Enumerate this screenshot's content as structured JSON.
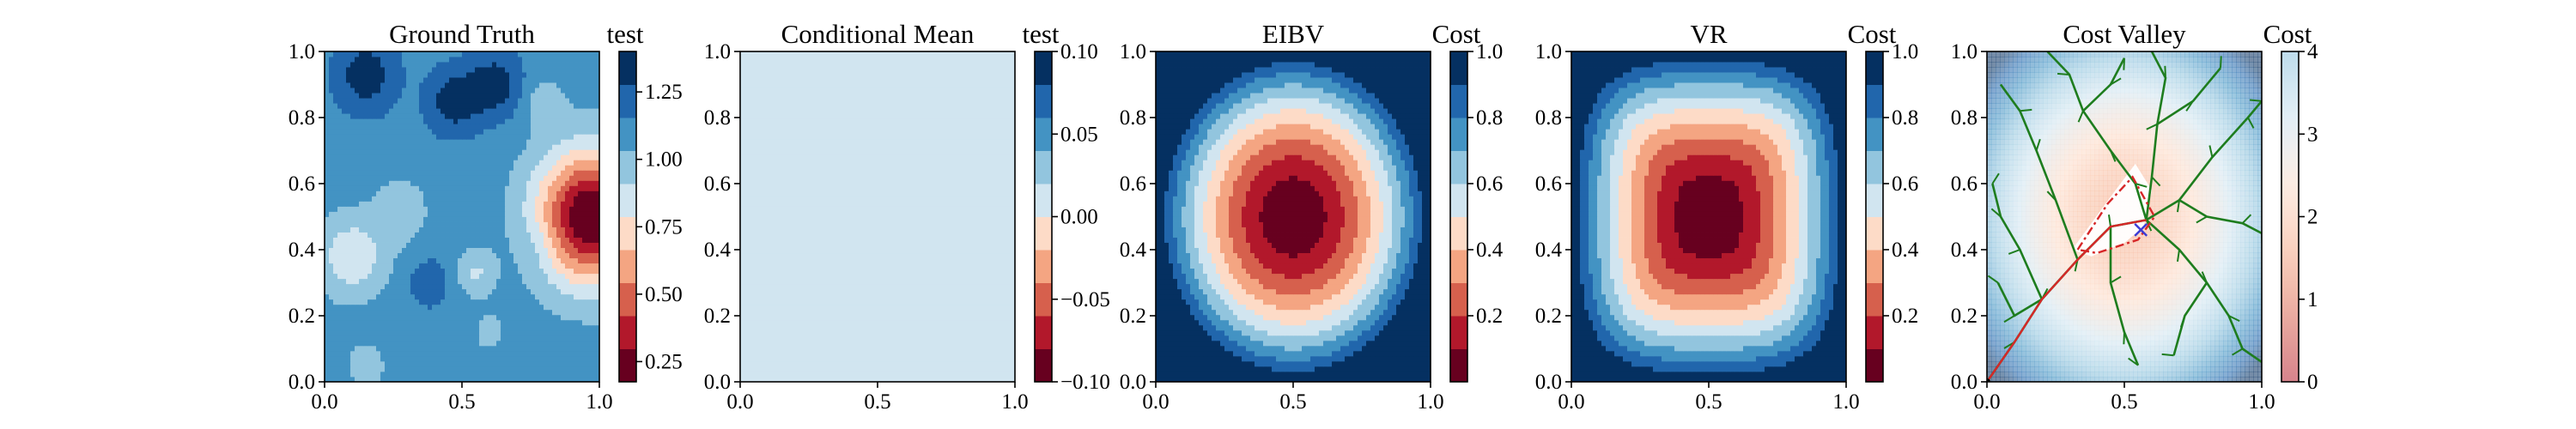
{
  "chart_data": [
    {
      "type": "heatmap",
      "title": "Ground Truth",
      "colorbar_label": "test",
      "colormap": "RdBu (discrete)",
      "xlim": [
        0.0,
        1.0
      ],
      "ylim": [
        0.0,
        1.0
      ],
      "xticks": [
        "0.0",
        "0.5",
        "1.0"
      ],
      "yticks": [
        "0.0",
        "0.2",
        "0.4",
        "0.6",
        "0.8",
        "1.0"
      ],
      "clim": [
        0.175,
        1.4
      ],
      "colorbar_ticks": [
        "0.25",
        "0.50",
        "0.75",
        "1.00",
        "1.25"
      ],
      "colorbar_tick_values": [
        0.25,
        0.5,
        0.75,
        1.0,
        1.25
      ],
      "field": {
        "base": 1.1,
        "blobs": [
          {
            "x": 0.15,
            "y": 0.93,
            "r": 0.08,
            "v": 1.35
          },
          {
            "x": 0.47,
            "y": 0.85,
            "r": 0.07,
            "v": 1.35
          },
          {
            "x": 0.62,
            "y": 0.9,
            "r": 0.07,
            "v": 1.35
          },
          {
            "x": 0.8,
            "y": 0.85,
            "r": 0.05,
            "v": 0.95
          },
          {
            "x": 0.1,
            "y": 0.38,
            "r": 0.09,
            "v": 0.82
          },
          {
            "x": 0.28,
            "y": 0.52,
            "r": 0.07,
            "v": 0.95
          },
          {
            "x": 0.55,
            "y": 0.33,
            "r": 0.05,
            "v": 0.9
          },
          {
            "x": 0.78,
            "y": 0.42,
            "r": 0.06,
            "v": 1.18
          },
          {
            "x": 0.38,
            "y": 0.3,
            "r": 0.06,
            "v": 1.22
          },
          {
            "x": 0.15,
            "y": 0.05,
            "r": 0.05,
            "v": 0.95
          },
          {
            "x": 0.6,
            "y": 0.15,
            "r": 0.05,
            "v": 1.0
          },
          {
            "x": 0.97,
            "y": 0.5,
            "r": 0.14,
            "v": 0.15
          }
        ]
      }
    },
    {
      "type": "heatmap",
      "title": "Conditional Mean",
      "colorbar_label": "test",
      "colormap": "RdBu (discrete)",
      "xlim": [
        0.0,
        1.0
      ],
      "ylim": [
        0.0,
        1.0
      ],
      "xticks": [
        "0.0",
        "0.5",
        "1.0"
      ],
      "yticks": [
        "0.0",
        "0.2",
        "0.4",
        "0.6",
        "0.8",
        "1.0"
      ],
      "clim": [
        -0.1,
        0.1
      ],
      "colorbar_ticks": [
        "−0.10",
        "−0.05",
        "0.00",
        "0.05",
        "0.10"
      ],
      "colorbar_tick_values": [
        -0.1,
        -0.05,
        0.0,
        0.05,
        0.1
      ],
      "field": {
        "constant": 0.0
      }
    },
    {
      "type": "heatmap",
      "title": "EIBV",
      "colorbar_label": "Cost",
      "colormap": "RdBu (discrete)",
      "xlim": [
        0.0,
        1.0
      ],
      "ylim": [
        0.0,
        1.0
      ],
      "xticks": [
        "0.0",
        "0.5",
        "1.0"
      ],
      "yticks": [
        "0.0",
        "0.2",
        "0.4",
        "0.6",
        "0.8",
        "1.0"
      ],
      "clim": [
        0.0,
        1.0
      ],
      "colorbar_ticks": [
        "0.2",
        "0.4",
        "0.6",
        "0.8",
        "1.0"
      ],
      "colorbar_tick_values": [
        0.2,
        0.4,
        0.6,
        0.8,
        1.0
      ],
      "field": {
        "bowl": {
          "cx": 0.5,
          "cy": 0.5,
          "p": 2
        }
      }
    },
    {
      "type": "heatmap",
      "title": "VR",
      "colorbar_label": "Cost",
      "colormap": "RdBu (discrete)",
      "xlim": [
        0.0,
        1.0
      ],
      "ylim": [
        0.0,
        1.0
      ],
      "xticks": [
        "0.0",
        "0.5",
        "1.0"
      ],
      "yticks": [
        "0.0",
        "0.2",
        "0.4",
        "0.6",
        "0.8",
        "1.0"
      ],
      "clim": [
        0.0,
        1.0
      ],
      "colorbar_ticks": [
        "0.2",
        "0.4",
        "0.6",
        "0.8",
        "1.0"
      ],
      "colorbar_tick_values": [
        0.2,
        0.4,
        0.6,
        0.8,
        1.0
      ],
      "field": {
        "bowl": {
          "cx": 0.5,
          "cy": 0.5,
          "p": 3.5
        }
      }
    },
    {
      "type": "heatmap",
      "title": "Cost Valley",
      "colorbar_label": "Cost",
      "colormap": "RdBu (continuous, semi-transparent)",
      "xlim": [
        0.0,
        1.0
      ],
      "ylim": [
        0.0,
        1.0
      ],
      "xticks": [
        "0.0",
        "0.5",
        "1.0"
      ],
      "yticks": [
        "0.0",
        "0.2",
        "0.4",
        "0.6",
        "0.8",
        "1.0"
      ],
      "clim": [
        0.0,
        4.0
      ],
      "colorbar_ticks": [
        "0",
        "1",
        "2",
        "3",
        "4"
      ],
      "colorbar_tick_values": [
        0,
        1,
        2,
        3,
        4
      ],
      "field": {
        "valley": {
          "cx": 0.5,
          "cy": 0.5
        }
      },
      "valley_minimum": {
        "x": 0.58,
        "y": 0.46
      },
      "rrt_tree": {
        "color": "#1e7d1e",
        "branches": [
          [
            [
              0.0,
              0.0
            ],
            [
              0.1,
              0.12
            ],
            [
              0.2,
              0.25
            ],
            [
              0.33,
              0.37
            ],
            [
              0.45,
              0.47
            ],
            [
              0.58,
              0.49
            ]
          ],
          [
            [
              0.58,
              0.49
            ],
            [
              0.6,
              0.62
            ],
            [
              0.62,
              0.78
            ],
            [
              0.65,
              0.92
            ],
            [
              0.6,
              1.0
            ]
          ],
          [
            [
              0.58,
              0.49
            ],
            [
              0.7,
              0.55
            ],
            [
              0.82,
              0.68
            ],
            [
              0.95,
              0.8
            ],
            [
              1.0,
              0.85
            ]
          ],
          [
            [
              0.58,
              0.49
            ],
            [
              0.7,
              0.4
            ],
            [
              0.8,
              0.3
            ],
            [
              0.88,
              0.2
            ],
            [
              0.93,
              0.1
            ],
            [
              1.0,
              0.06
            ]
          ],
          [
            [
              0.58,
              0.49
            ],
            [
              0.54,
              0.6
            ],
            [
              0.45,
              0.7
            ],
            [
              0.35,
              0.82
            ],
            [
              0.3,
              0.93
            ],
            [
              0.22,
              1.0
            ]
          ],
          [
            [
              0.2,
              0.25
            ],
            [
              0.12,
              0.4
            ],
            [
              0.05,
              0.5
            ],
            [
              0.02,
              0.6
            ]
          ],
          [
            [
              0.2,
              0.25
            ],
            [
              0.1,
              0.2
            ],
            [
              0.04,
              0.3
            ]
          ],
          [
            [
              0.33,
              0.37
            ],
            [
              0.25,
              0.55
            ],
            [
              0.18,
              0.7
            ],
            [
              0.12,
              0.82
            ],
            [
              0.05,
              0.9
            ]
          ],
          [
            [
              0.45,
              0.47
            ],
            [
              0.45,
              0.3
            ],
            [
              0.5,
              0.15
            ],
            [
              0.55,
              0.05
            ]
          ],
          [
            [
              0.7,
              0.55
            ],
            [
              0.8,
              0.5
            ],
            [
              0.93,
              0.48
            ],
            [
              1.0,
              0.45
            ]
          ],
          [
            [
              0.62,
              0.78
            ],
            [
              0.75,
              0.85
            ],
            [
              0.85,
              0.95
            ]
          ],
          [
            [
              0.8,
              0.3
            ],
            [
              0.72,
              0.2
            ],
            [
              0.68,
              0.08
            ]
          ],
          [
            [
              0.35,
              0.82
            ],
            [
              0.45,
              0.9
            ],
            [
              0.5,
              0.98
            ]
          ]
        ]
      },
      "chosen_path": {
        "color": "#d62728",
        "points": [
          [
            0.0,
            0.0
          ],
          [
            0.1,
            0.12
          ],
          [
            0.2,
            0.25
          ],
          [
            0.33,
            0.37
          ],
          [
            0.45,
            0.47
          ],
          [
            0.58,
            0.49
          ]
        ]
      },
      "budget_polygon": {
        "color": "#d62728",
        "points": [
          [
            0.33,
            0.4
          ],
          [
            0.44,
            0.54
          ],
          [
            0.53,
            0.62
          ],
          [
            0.61,
            0.5
          ],
          [
            0.55,
            0.43
          ],
          [
            0.4,
            0.39
          ]
        ]
      },
      "excluded_region": {
        "points": [
          [
            0.31,
            0.4
          ],
          [
            0.45,
            0.56
          ],
          [
            0.54,
            0.66
          ],
          [
            0.6,
            0.58
          ],
          [
            0.57,
            0.47
          ],
          [
            0.5,
            0.42
          ],
          [
            0.38,
            0.38
          ]
        ]
      },
      "marker": {
        "x": 0.56,
        "y": 0.46,
        "color": "#3b3bd6",
        "symbol": "x"
      }
    }
  ]
}
